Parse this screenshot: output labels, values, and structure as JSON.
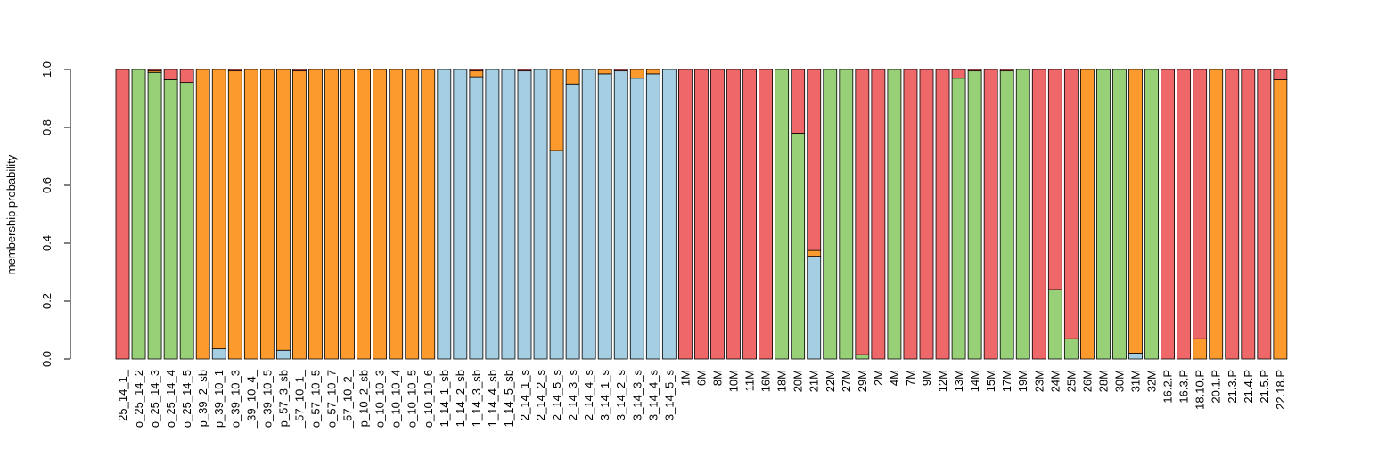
{
  "colors": {
    "blue": "#a6cee3",
    "green": "#98d077",
    "orange": "#fd9a2e",
    "red": "#ef6869",
    "black": "#000000"
  },
  "chart_data": {
    "type": "bar",
    "stacked": true,
    "title": "",
    "xlabel": "",
    "ylabel": "membership probability",
    "ylim": [
      0,
      1
    ],
    "yticks": [
      "0.0",
      "0.2",
      "0.4",
      "0.6",
      "0.8",
      "1.0"
    ],
    "grid": false,
    "legend": "none",
    "categories": [
      "25_14_1_",
      "o_25_14_2",
      "o_25_14_3",
      "o_25_14_4",
      "o_25_14_5",
      "p_39_2_sb",
      "p_39_10_1",
      "o_39_10_3",
      "_39_10_4_",
      "o_39_10_5",
      "p_57_3_sb",
      "_57_10_1_",
      "o_57_10_5",
      "o_57_10_7",
      "_57_10_2_",
      "p_10_2_sb",
      "o_10_10_3",
      "o_10_10_4",
      "o_10_10_5",
      "o_10_10_6",
      "1_14_1_sb",
      "1_14_2_sb",
      "1_14_3_sb",
      "1_14_4_sb",
      "1_14_5_sb",
      "2_14_1_s",
      "2_14_2_s",
      "2_14_5_s",
      "2_14_3_s",
      "2_14_4_s",
      "3_14_1_s",
      "3_14_2_s",
      "3_14_3_s",
      "3_14_4_s",
      "3_14_5_s",
      "1M",
      "6M",
      "8M",
      "10M",
      "11M",
      "16M",
      "18M",
      "20M",
      "21M",
      "22M",
      "27M",
      "29M",
      "2M",
      "4M",
      "7M",
      "9M",
      "12M",
      "13M",
      "14M",
      "15M",
      "17M",
      "19M",
      "23M",
      "24M",
      "25M",
      "26M",
      "28M",
      "30M",
      "31M",
      "32M",
      "16.2.P",
      "16.3.P",
      "18.10.P",
      "20.1.P",
      "21.3.P",
      "21.4.P",
      "21.5.P",
      "22.18.P"
    ],
    "series": [
      {
        "color": "#a6cee3",
        "values": [
          0,
          0,
          0,
          0,
          0,
          0,
          0.035,
          0,
          0,
          0,
          0.03,
          0,
          0,
          0,
          0,
          0,
          0,
          0,
          0,
          0,
          1,
          1,
          0.975,
          1,
          1,
          0.995,
          1,
          0.72,
          0.95,
          1,
          0.985,
          0.995,
          0.97,
          0.985,
          1,
          0,
          0,
          0,
          0,
          0,
          0,
          0,
          0,
          0.355,
          0,
          0,
          0,
          0,
          0,
          0,
          0,
          0,
          0,
          0,
          0,
          0,
          0,
          0,
          0,
          0,
          0,
          0,
          0,
          0.02,
          0,
          0,
          0,
          0,
          0,
          0,
          0,
          0,
          0
        ]
      },
      {
        "color": "#98d077",
        "values": [
          0,
          1,
          0.99,
          0.965,
          0.955,
          0,
          0,
          0,
          0,
          0,
          0,
          0,
          0,
          0,
          0,
          0,
          0,
          0,
          0,
          0,
          0,
          0,
          0,
          0,
          0,
          0,
          0,
          0,
          0,
          0,
          0,
          0,
          0,
          0,
          0,
          0,
          0,
          0,
          0,
          0,
          0,
          1,
          0.78,
          0,
          1,
          1,
          0.015,
          0,
          1,
          0,
          0,
          0,
          0.97,
          0.995,
          0,
          0.995,
          1,
          0,
          0.24,
          0.07,
          0,
          1,
          1,
          0,
          1,
          0,
          0,
          0,
          0,
          0,
          0,
          0,
          0
        ]
      },
      {
        "color": "#fd9a2e",
        "values": [
          0,
          0,
          0.005,
          0,
          0,
          1,
          0.965,
          0.995,
          1,
          1,
          0.97,
          0.995,
          1,
          1,
          1,
          1,
          1,
          1,
          1,
          1,
          0,
          0,
          0.02,
          0,
          0,
          0,
          0,
          0.28,
          0.05,
          0,
          0.015,
          0,
          0.03,
          0.015,
          0,
          0,
          0,
          0,
          0,
          0,
          0,
          0,
          0,
          0.02,
          0,
          0,
          0,
          0,
          0,
          0,
          0,
          0,
          0,
          0,
          0,
          0,
          0,
          0,
          0,
          0,
          1,
          0,
          0,
          0.98,
          0,
          0,
          0,
          0.07,
          1,
          0,
          0,
          0,
          0.965
        ]
      },
      {
        "color": "#ef6869",
        "values": [
          1,
          0,
          0.005,
          0.035,
          0.045,
          0,
          0,
          0.005,
          0,
          0,
          0,
          0.005,
          0,
          0,
          0,
          0,
          0,
          0,
          0,
          0,
          0,
          0,
          0.005,
          0,
          0,
          0.005,
          0,
          0,
          0,
          0,
          0,
          0.005,
          0,
          0,
          0,
          1,
          1,
          1,
          1,
          1,
          1,
          0,
          0.22,
          0.625,
          0,
          0,
          0.985,
          1,
          0,
          1,
          1,
          1,
          0.03,
          0.005,
          1,
          0.005,
          0,
          1,
          0.76,
          0.93,
          0,
          0,
          0,
          0,
          0,
          1,
          1,
          0.93,
          0,
          1,
          1,
          1,
          0.035
        ]
      }
    ]
  }
}
